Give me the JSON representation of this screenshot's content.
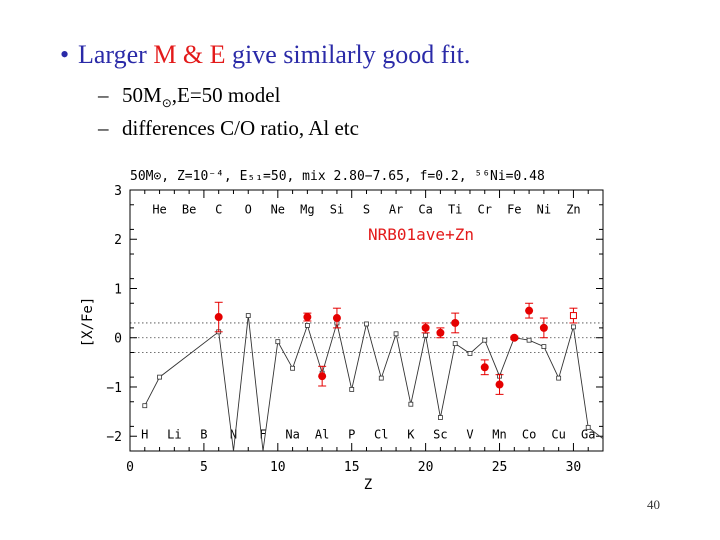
{
  "slide": {
    "bullet": {
      "prefix": "Larger ",
      "highlight": "M & E",
      "suffix": " give similarly good fit."
    },
    "sub1": {
      "text_pre": "50M",
      "sun": "⊙",
      "text_post": ",E=50 model"
    },
    "sub2": {
      "text": "differences C/O ratio, Al etc"
    },
    "page_number": "40"
  },
  "chart_data": {
    "type": "scatter",
    "title": "50M⊙, Z=10⁻⁴, E₅₁=50, mix 2.80−7.65, f=0.2, ⁵⁶Ni=0.48",
    "annotation": "NRB01ave+Zn",
    "xlabel": "Z",
    "ylabel": "[X/Fe]",
    "xlim": [
      0,
      32
    ],
    "ylim": [
      -2.3,
      3
    ],
    "x_ticks": [
      0,
      5,
      10,
      15,
      20,
      25,
      30
    ],
    "y_ticks": [
      -2,
      -1,
      0,
      1,
      2,
      3
    ],
    "reference_lines": [
      0.3,
      0,
      -0.3
    ],
    "top_elements": [
      {
        "z": 2,
        "label": "He"
      },
      {
        "z": 4,
        "label": "Be"
      },
      {
        "z": 6,
        "label": "C"
      },
      {
        "z": 8,
        "label": "O"
      },
      {
        "z": 10,
        "label": "Ne"
      },
      {
        "z": 12,
        "label": "Mg"
      },
      {
        "z": 14,
        "label": "Si"
      },
      {
        "z": 16,
        "label": "S"
      },
      {
        "z": 18,
        "label": "Ar"
      },
      {
        "z": 20,
        "label": "Ca"
      },
      {
        "z": 22,
        "label": "Ti"
      },
      {
        "z": 24,
        "label": "Cr"
      },
      {
        "z": 26,
        "label": "Fe"
      },
      {
        "z": 28,
        "label": "Ni"
      },
      {
        "z": 30,
        "label": "Zn"
      }
    ],
    "bottom_elements": [
      {
        "z": 1,
        "label": "H"
      },
      {
        "z": 3,
        "label": "Li"
      },
      {
        "z": 5,
        "label": "B"
      },
      {
        "z": 7,
        "label": "N"
      },
      {
        "z": 9,
        "label": "F"
      },
      {
        "z": 11,
        "label": "Na"
      },
      {
        "z": 13,
        "label": "Al"
      },
      {
        "z": 15,
        "label": "P"
      },
      {
        "z": 17,
        "label": "Cl"
      },
      {
        "z": 19,
        "label": "K"
      },
      {
        "z": 21,
        "label": "Sc"
      },
      {
        "z": 23,
        "label": "V"
      },
      {
        "z": 25,
        "label": "Mn"
      },
      {
        "z": 27,
        "label": "Co"
      },
      {
        "z": 29,
        "label": "Cu"
      },
      {
        "z": 31,
        "label": "Ga"
      }
    ],
    "series": [
      {
        "kind": "model",
        "points": [
          [
            1,
            -1.38
          ],
          [
            2,
            -0.8
          ],
          [
            6,
            0.12
          ],
          [
            7,
            -2.3
          ],
          [
            8,
            0.45
          ],
          [
            9,
            -2.3
          ],
          [
            10,
            -0.08
          ],
          [
            11,
            -0.62
          ],
          [
            12,
            0.25
          ],
          [
            13,
            -0.72
          ],
          [
            14,
            0.3
          ],
          [
            15,
            -1.05
          ],
          [
            16,
            0.28
          ],
          [
            17,
            -0.82
          ],
          [
            18,
            0.08
          ],
          [
            19,
            -1.35
          ],
          [
            20,
            0.05
          ],
          [
            21,
            -1.62
          ],
          [
            22,
            -0.12
          ],
          [
            23,
            -0.32
          ],
          [
            24,
            -0.05
          ],
          [
            25,
            -0.78
          ],
          [
            26,
            0.0
          ],
          [
            27,
            -0.05
          ],
          [
            28,
            -0.18
          ],
          [
            29,
            -0.82
          ],
          [
            30,
            0.22
          ],
          [
            31,
            -1.82
          ],
          [
            32,
            -2.05
          ]
        ]
      },
      {
        "kind": "observed",
        "points": [
          {
            "z": 6,
            "y": 0.42,
            "err": 0.3
          },
          {
            "z": 12,
            "y": 0.42,
            "err": 0.08
          },
          {
            "z": 13,
            "y": -0.78,
            "err": 0.2
          },
          {
            "z": 14,
            "y": 0.4,
            "err": 0.2
          },
          {
            "z": 20,
            "y": 0.2,
            "err": 0.1
          },
          {
            "z": 21,
            "y": 0.1,
            "err": 0.1
          },
          {
            "z": 22,
            "y": 0.3,
            "err": 0.2
          },
          {
            "z": 24,
            "y": -0.6,
            "err": 0.15
          },
          {
            "z": 25,
            "y": -0.95,
            "err": 0.2
          },
          {
            "z": 26,
            "y": 0.0,
            "err": 0.03
          },
          {
            "z": 27,
            "y": 0.55,
            "err": 0.15
          },
          {
            "z": 28,
            "y": 0.2,
            "err": 0.2
          }
        ]
      },
      {
        "kind": "upper",
        "points": [
          {
            "z": 30,
            "y": 0.45,
            "err": 0.15
          }
        ]
      }
    ],
    "colors": {
      "observed": "#e50000",
      "model": "#333333",
      "axis": "#000000"
    }
  }
}
